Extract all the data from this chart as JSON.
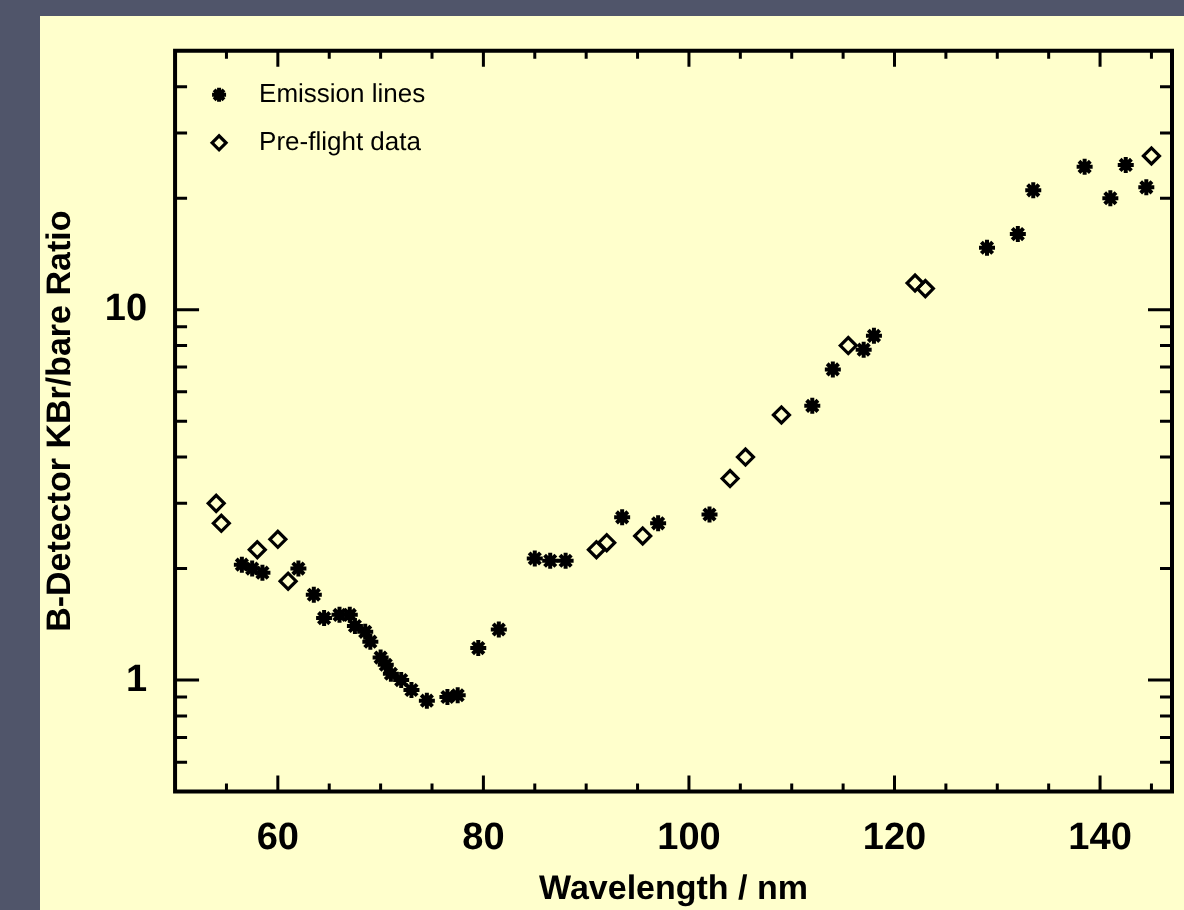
{
  "chart_data": {
    "type": "scatter",
    "xlabel": "Wavelength / nm",
    "ylabel": "B-Detector KBr/bare Ratio",
    "log": "y",
    "legend": "top left",
    "grid": false,
    "xlim": [
      50,
      147
    ],
    "ylim": [
      0.5,
      50
    ],
    "xticks": [
      {
        "value": 55,
        "label": null
      },
      60,
      {
        "value": 65,
        "label": null
      },
      {
        "value": 70,
        "label": null
      },
      {
        "value": 75,
        "label": null
      },
      80,
      {
        "value": 85,
        "label": null
      },
      {
        "value": 90,
        "label": null
      },
      {
        "value": 95,
        "label": null
      },
      100,
      {
        "value": 105,
        "label": null
      },
      {
        "value": 110,
        "label": null
      },
      {
        "value": 115,
        "label": null
      },
      120,
      {
        "value": 125,
        "label": null
      },
      {
        "value": 130,
        "label": null
      },
      {
        "value": 135,
        "label": null
      },
      140,
      {
        "value": 145,
        "label": null
      }
    ],
    "yticks": [
      {
        "value": 0.6,
        "label": null
      },
      {
        "value": 0.7,
        "label": null
      },
      {
        "value": 0.8,
        "label": null
      },
      {
        "value": 0.9,
        "label": null
      },
      1,
      {
        "value": 2,
        "label": null
      },
      {
        "value": 3,
        "label": null
      },
      {
        "value": 4,
        "label": null
      },
      {
        "value": 5,
        "label": null
      },
      {
        "value": 6,
        "label": null
      },
      {
        "value": 7,
        "label": null
      },
      {
        "value": 8,
        "label": null
      },
      {
        "value": 9,
        "label": null
      },
      10,
      {
        "value": 20,
        "label": null
      },
      {
        "value": 30,
        "label": null
      },
      {
        "value": 40,
        "label": null
      }
    ],
    "series": [
      {
        "name": "Emission lines",
        "color": "#000000",
        "marker": "cross",
        "x": [
          56.5,
          57.5,
          58.5,
          62,
          63.5,
          64.5,
          66,
          67,
          67.5,
          68.5,
          69,
          70,
          70.5,
          71,
          72,
          73,
          74.5,
          76.5,
          77.5,
          79.5,
          81.5,
          85,
          86.5,
          88,
          93.5,
          97,
          102,
          112,
          114,
          117,
          118,
          129,
          132,
          133.5,
          138.5,
          141,
          142.5,
          144.5
        ],
        "values": [
          2.05,
          2.0,
          1.95,
          2.0,
          1.7,
          1.47,
          1.5,
          1.5,
          1.4,
          1.35,
          1.27,
          1.15,
          1.1,
          1.04,
          1.0,
          0.94,
          0.88,
          0.9,
          0.91,
          1.22,
          1.37,
          2.13,
          2.1,
          2.1,
          2.75,
          2.65,
          2.8,
          5.5,
          6.9,
          7.8,
          8.5,
          14.7,
          16,
          21,
          24.3,
          20,
          24.6,
          21.4
        ]
      },
      {
        "name": "Pre-flight data",
        "color": "#000000",
        "marker": "diamond",
        "x": [
          54,
          54.5,
          58,
          60,
          61,
          91,
          92,
          95.5,
          104,
          105.5,
          109,
          115.5,
          122,
          123,
          145
        ],
        "values": [
          3.0,
          2.65,
          2.25,
          2.4,
          1.85,
          2.25,
          2.35,
          2.45,
          3.5,
          4.0,
          5.2,
          8.0,
          11.8,
          11.4,
          26
        ]
      }
    ]
  }
}
